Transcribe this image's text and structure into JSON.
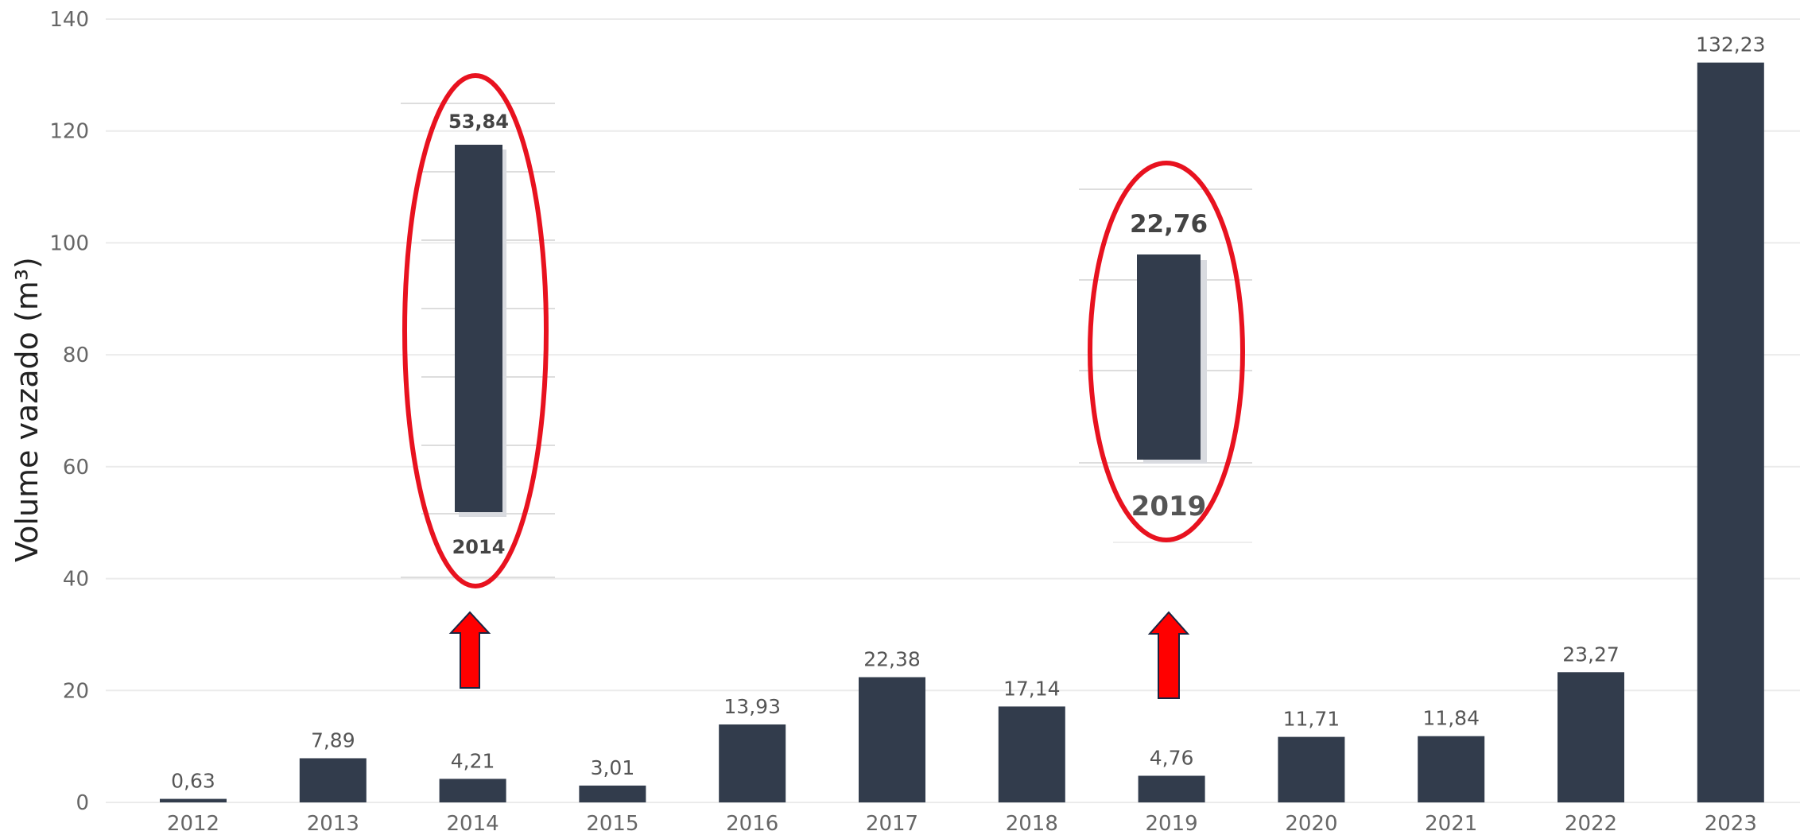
{
  "chart_data": {
    "type": "bar",
    "title": "",
    "xlabel": "",
    "ylabel": "Volume vazado (m³)",
    "ylim": [
      0,
      140
    ],
    "yticks": [
      0,
      20,
      40,
      60,
      80,
      100,
      120,
      140
    ],
    "grid": true,
    "bar_color": "#323c4c",
    "categories": [
      "2012",
      "2013",
      "2014",
      "2015",
      "2016",
      "2017",
      "2018",
      "2019",
      "2020",
      "2021",
      "2022",
      "2023"
    ],
    "values": [
      0.63,
      7.89,
      4.21,
      3.01,
      13.93,
      22.38,
      17.14,
      4.76,
      11.71,
      11.84,
      23.27,
      132.23
    ],
    "data_labels": [
      "0,63",
      "7,89",
      "4,21",
      "3,01",
      "13,93",
      "22,38",
      "17,14",
      "4,76",
      "11,71",
      "11,84",
      "23,27",
      "132,23"
    ],
    "annotations": [
      {
        "year": "2014",
        "value_label": "53,84",
        "highlight_color": "#e8121f",
        "arrow_color": "#ff0000"
      },
      {
        "year": "2019",
        "value_label": "22,76",
        "highlight_color": "#e8121f",
        "arrow_color": "#ff0000"
      }
    ]
  }
}
